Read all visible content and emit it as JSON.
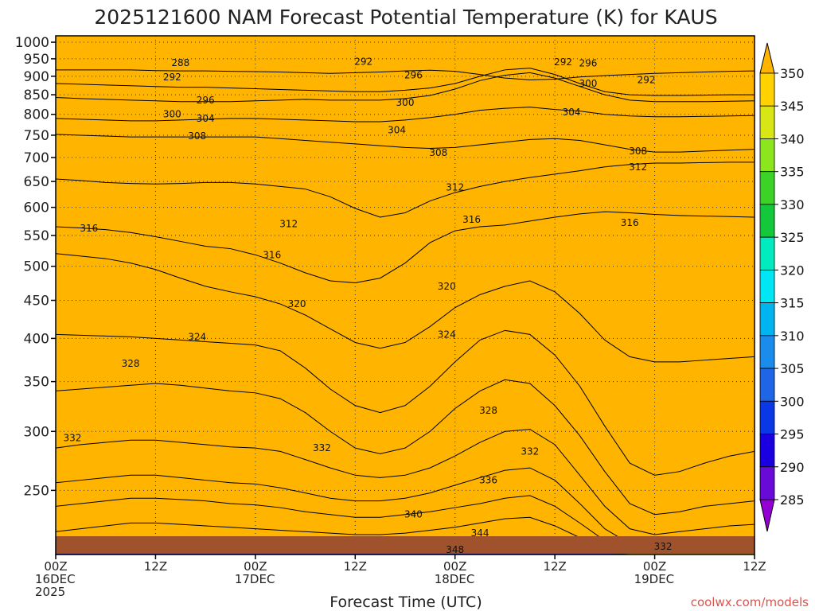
{
  "chart_data": {
    "type": "area",
    "title": "2025121600 NAM Forecast Potential Temperature (K) for KAUS",
    "xlabel": "Forecast Time (UTC)",
    "ylabel": "",
    "x_ticks": [
      {
        "hour": 0,
        "labels": [
          "00Z",
          "16DEC",
          "2025"
        ]
      },
      {
        "hour": 12,
        "labels": [
          "12Z"
        ]
      },
      {
        "hour": 24,
        "labels": [
          "00Z",
          "17DEC"
        ]
      },
      {
        "hour": 36,
        "labels": [
          "12Z"
        ]
      },
      {
        "hour": 48,
        "labels": [
          "00Z",
          "18DEC"
        ]
      },
      {
        "hour": 60,
        "labels": [
          "12Z"
        ]
      },
      {
        "hour": 72,
        "labels": [
          "00Z",
          "19DEC"
        ]
      },
      {
        "hour": 84,
        "labels": [
          "12Z"
        ]
      }
    ],
    "xlim": [
      0,
      84
    ],
    "y_ticks": [
      250,
      300,
      350,
      400,
      450,
      500,
      550,
      600,
      650,
      700,
      750,
      800,
      850,
      900,
      950,
      1000
    ],
    "ylim": [
      1020,
      205
    ],
    "y_scale": "log-pressure",
    "colorbar": {
      "levels": [
        285,
        290,
        295,
        300,
        305,
        310,
        315,
        320,
        325,
        330,
        335,
        340,
        345,
        350
      ],
      "colors": [
        "#9400d3",
        "#6a0ad8",
        "#1a00e0",
        "#0a38e6",
        "#1e66e6",
        "#1a8cec",
        "#00b4f0",
        "#00e6f5",
        "#00ebbe",
        "#14c83c",
        "#3cd228",
        "#8ce61e",
        "#d7e614",
        "#ffd200",
        "#ffb400"
      ],
      "tick_labels": [
        "350",
        "345",
        "340",
        "335",
        "330",
        "325",
        "320",
        "315",
        "310",
        "305",
        "300",
        "295",
        "290",
        "285"
      ]
    },
    "ground_color": "#a0522d",
    "series": [
      {
        "theta": 292,
        "p": [
          918,
          918,
          918,
          918,
          916,
          915,
          915,
          914,
          913,
          912,
          910,
          908,
          910,
          912,
          915,
          917,
          914,
          905,
          895,
          890,
          892,
          898,
          902,
          905,
          908,
          910,
          912,
          914,
          915
        ]
      },
      {
        "theta": 296,
        "p": [
          880,
          878,
          876,
          874,
          872,
          870,
          870,
          868,
          866,
          864,
          862,
          860,
          858,
          858,
          862,
          868,
          880,
          900,
          918,
          923,
          905,
          880,
          858,
          850,
          848,
          848,
          849,
          850,
          850
        ]
      },
      {
        "theta": 300,
        "p": [
          843,
          840,
          838,
          836,
          834,
          832,
          832,
          832,
          834,
          836,
          838,
          836,
          836,
          836,
          840,
          848,
          865,
          888,
          903,
          910,
          895,
          872,
          850,
          836,
          832,
          832,
          832,
          833,
          834
        ]
      },
      {
        "theta": 304,
        "p": [
          790,
          788,
          786,
          784,
          784,
          786,
          788,
          790,
          790,
          788,
          786,
          784,
          782,
          782,
          786,
          792,
          800,
          810,
          815,
          818,
          812,
          808,
          800,
          796,
          794,
          794,
          795,
          796,
          797
        ]
      },
      {
        "theta": 308,
        "p": [
          752,
          750,
          748,
          746,
          746,
          746,
          746,
          746,
          746,
          742,
          738,
          734,
          730,
          726,
          722,
          720,
          722,
          728,
          734,
          740,
          742,
          738,
          728,
          718,
          712,
          712,
          714,
          716,
          718
        ]
      },
      {
        "theta": 312,
        "p": [
          655,
          652,
          648,
          646,
          645,
          646,
          648,
          648,
          645,
          640,
          635,
          620,
          598,
          582,
          590,
          612,
          628,
          640,
          650,
          658,
          665,
          672,
          680,
          685,
          688,
          688,
          689,
          690,
          690
        ]
      },
      {
        "theta": 316,
        "p": [
          565,
          563,
          560,
          555,
          548,
          540,
          532,
          528,
          518,
          505,
          490,
          478,
          475,
          482,
          505,
          538,
          558,
          565,
          568,
          575,
          582,
          588,
          592,
          590,
          587,
          585,
          584,
          583,
          582
        ]
      },
      {
        "theta": 320,
        "p": [
          520,
          516,
          512,
          505,
          495,
          482,
          470,
          462,
          455,
          445,
          430,
          412,
          395,
          388,
          395,
          415,
          440,
          458,
          470,
          478,
          462,
          432,
          398,
          378,
          372,
          372,
          374,
          376,
          378
        ]
      },
      {
        "theta": 324,
        "p": [
          405,
          404,
          403,
          402,
          400,
          398,
          396,
          394,
          392,
          385,
          365,
          342,
          325,
          318,
          325,
          345,
          372,
          398,
          410,
          405,
          380,
          345,
          305,
          272,
          262,
          265,
          272,
          278,
          282
        ]
      },
      {
        "theta": 328,
        "p": [
          340,
          342,
          344,
          346,
          348,
          346,
          343,
          340,
          338,
          332,
          318,
          300,
          285,
          280,
          285,
          300,
          322,
          340,
          352,
          348,
          325,
          296,
          265,
          240,
          232,
          234,
          238,
          240,
          242
        ]
      },
      {
        "theta": 332,
        "p": [
          285,
          288,
          290,
          292,
          292,
          290,
          288,
          286,
          285,
          282,
          275,
          268,
          262,
          260,
          262,
          268,
          278,
          290,
          300,
          302,
          288,
          262,
          238,
          222,
          218,
          220,
          222,
          224,
          225
        ]
      },
      {
        "theta": 336,
        "p": [
          256,
          258,
          260,
          262,
          262,
          260,
          258,
          256,
          255,
          252,
          248,
          244,
          242,
          242,
          244,
          248,
          254,
          260,
          266,
          268,
          258,
          240,
          222,
          212,
          210,
          212,
          214,
          215,
          216
        ]
      },
      {
        "theta": 340,
        "p": [
          238,
          240,
          242,
          244,
          244,
          243,
          242,
          240,
          239,
          237,
          234,
          232,
          230,
          230,
          232,
          234,
          237,
          240,
          244,
          246,
          238,
          226,
          214,
          208,
          207,
          208,
          209,
          210,
          211
        ]
      },
      {
        "theta": 344,
        "p": [
          220,
          222,
          224,
          226,
          226,
          225,
          224,
          223,
          222,
          221,
          220,
          219,
          218,
          218,
          219,
          221,
          223,
          226,
          229,
          230,
          224,
          216,
          209,
          206,
          206,
          206,
          207,
          207,
          208
        ]
      },
      {
        "theta": 348,
        "p": [
          208,
          209,
          210,
          211,
          211,
          211,
          211,
          210,
          210,
          210,
          209,
          209,
          208,
          208,
          209,
          210,
          211,
          212,
          214,
          215,
          212,
          209,
          206,
          205,
          205,
          205,
          205,
          205,
          205
        ]
      }
    ],
    "contour_labels": [
      {
        "text": "348",
        "hour": 48,
        "p": 208
      },
      {
        "text": "344",
        "hour": 51,
        "p": 219
      },
      {
        "text": "340",
        "hour": 43,
        "p": 232
      },
      {
        "text": "336",
        "hour": 52,
        "p": 258
      },
      {
        "text": "332",
        "hour": 2,
        "p": 294
      },
      {
        "text": "332",
        "hour": 32,
        "p": 285
      },
      {
        "text": "332",
        "hour": 57,
        "p": 282
      },
      {
        "text": "332",
        "hour": 73,
        "p": 210
      },
      {
        "text": "328",
        "hour": 9,
        "p": 370
      },
      {
        "text": "328",
        "hour": 52,
        "p": 320
      },
      {
        "text": "324",
        "hour": 17,
        "p": 402
      },
      {
        "text": "324",
        "hour": 47,
        "p": 405
      },
      {
        "text": "320",
        "hour": 29,
        "p": 445
      },
      {
        "text": "320",
        "hour": 47,
        "p": 470
      },
      {
        "text": "316",
        "hour": 4,
        "p": 562
      },
      {
        "text": "316",
        "hour": 26,
        "p": 518
      },
      {
        "text": "316",
        "hour": 50,
        "p": 578
      },
      {
        "text": "316",
        "hour": 69,
        "p": 572
      },
      {
        "text": "312",
        "hour": 28,
        "p": 570
      },
      {
        "text": "312",
        "hour": 48,
        "p": 638
      },
      {
        "text": "312",
        "hour": 70,
        "p": 680
      },
      {
        "text": "308",
        "hour": 17,
        "p": 748
      },
      {
        "text": "308",
        "hour": 46,
        "p": 710
      },
      {
        "text": "308",
        "hour": 70,
        "p": 714
      },
      {
        "text": "304",
        "hour": 18,
        "p": 790
      },
      {
        "text": "304",
        "hour": 41,
        "p": 762
      },
      {
        "text": "304",
        "hour": 62,
        "p": 805
      },
      {
        "text": "300",
        "hour": 14,
        "p": 800
      },
      {
        "text": "300",
        "hour": 42,
        "p": 830
      },
      {
        "text": "300",
        "hour": 64,
        "p": 880
      },
      {
        "text": "296",
        "hour": 18,
        "p": 836
      },
      {
        "text": "296",
        "hour": 43,
        "p": 903
      },
      {
        "text": "296",
        "hour": 64,
        "p": 937
      },
      {
        "text": "292",
        "hour": 14,
        "p": 897
      },
      {
        "text": "292",
        "hour": 37,
        "p": 942
      },
      {
        "text": "292",
        "hour": 61,
        "p": 940
      },
      {
        "text": "292",
        "hour": 71,
        "p": 890
      },
      {
        "text": "288",
        "hour": 15,
        "p": 938
      }
    ]
  },
  "credit": "coolwx.com/models"
}
